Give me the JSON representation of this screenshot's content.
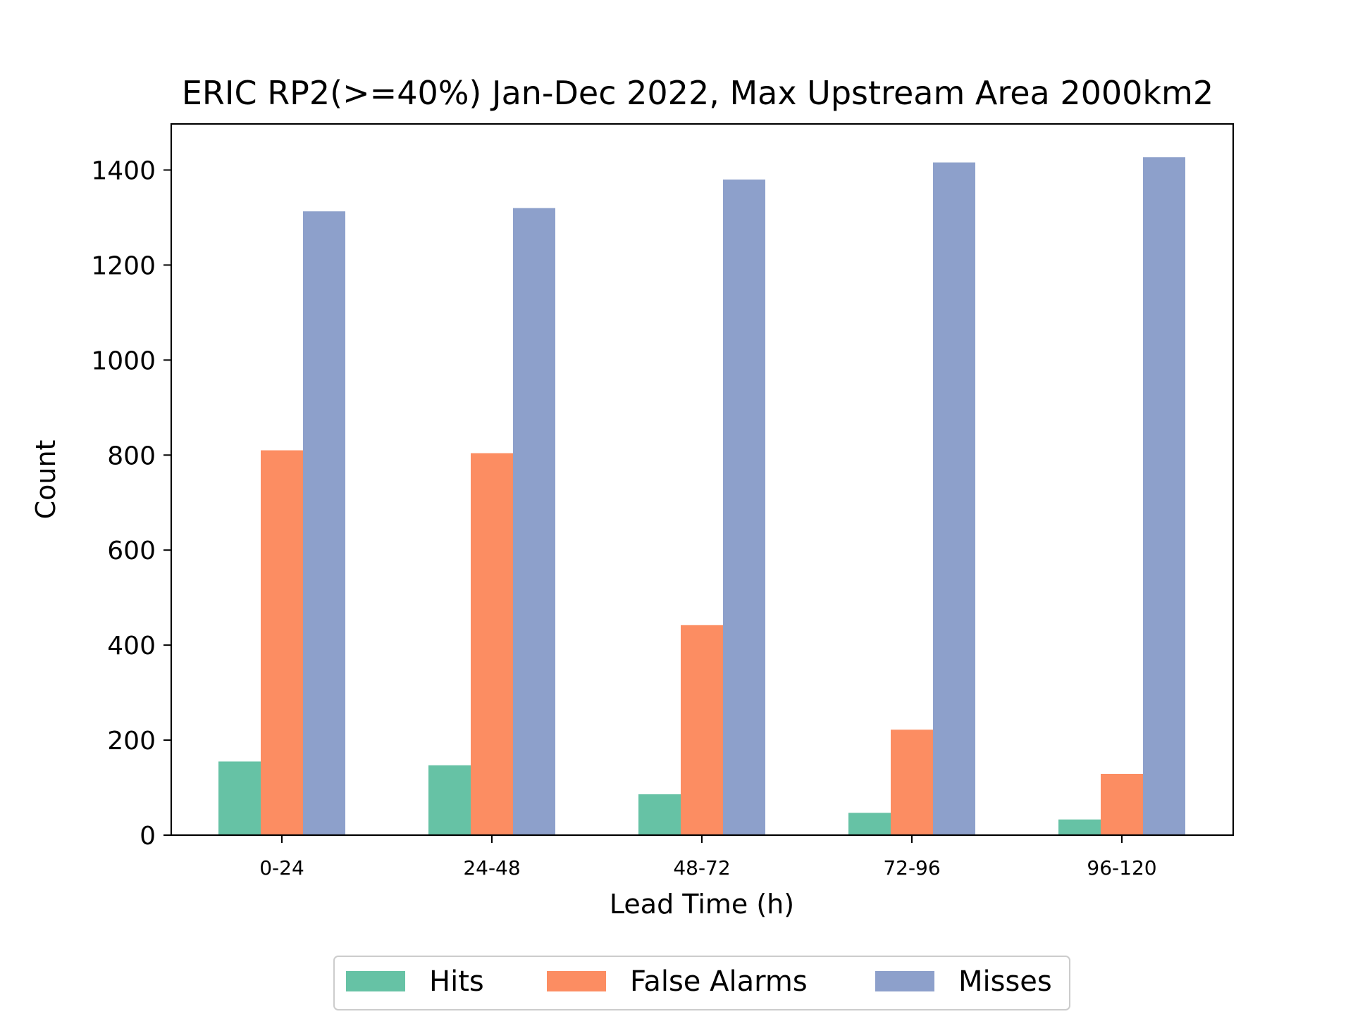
{
  "chart_data": {
    "type": "bar",
    "title": "ERIC RP2(>=40%) Jan-Dec 2022, Max Upstream Area 2000km2",
    "xlabel": "Lead Time (h)",
    "ylabel": "Count",
    "categories": [
      "0-24",
      "24-48",
      "48-72",
      "72-96",
      "96-120"
    ],
    "series": [
      {
        "name": "Hits",
        "color": "#66c2a5",
        "values": [
          155,
          147,
          86,
          47,
          33
        ]
      },
      {
        "name": "False Alarms",
        "color": "#fc8d62",
        "values": [
          810,
          804,
          442,
          222,
          129
        ]
      },
      {
        "name": "Misses",
        "color": "#8da0cb",
        "values": [
          1313,
          1320,
          1380,
          1416,
          1427
        ]
      }
    ],
    "ylim": [
      0,
      1497
    ],
    "yticks": [
      0,
      200,
      400,
      600,
      800,
      1000,
      1200,
      1400
    ],
    "ytick_labels": [
      "0",
      "200",
      "400",
      "600",
      "800",
      "1000",
      "1200",
      "1400"
    ],
    "grid": false,
    "legend_position": "bottom-center"
  }
}
